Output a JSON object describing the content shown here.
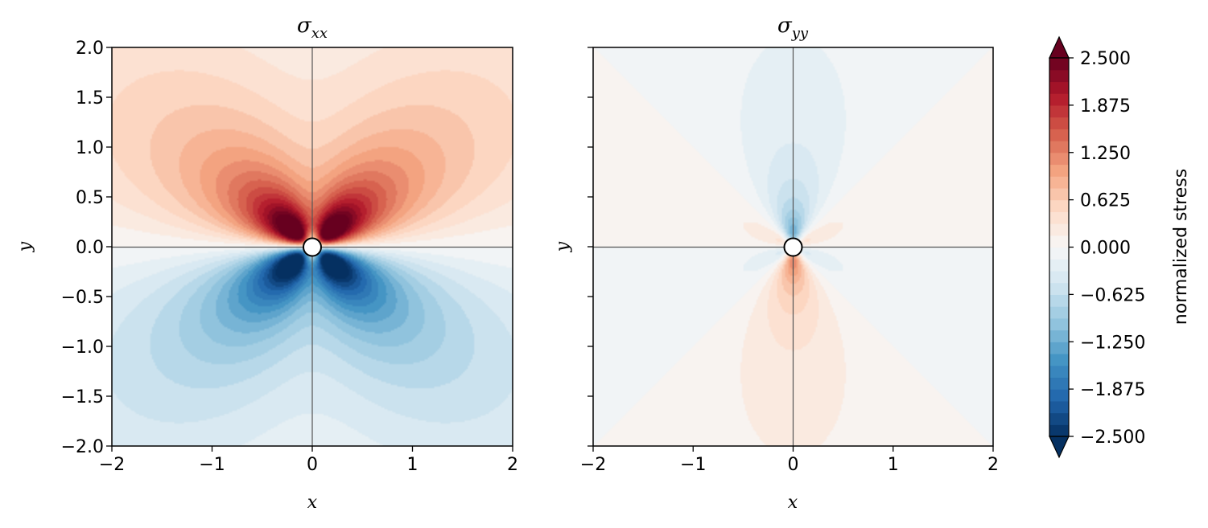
{
  "chart_data": [
    {
      "type": "heatmap",
      "title": "σ",
      "title_subscript": "xx",
      "xlabel": "x",
      "ylabel": "y",
      "xlim": [
        -2,
        2
      ],
      "ylim": [
        -2,
        2
      ],
      "x_ticks": [
        -2,
        -1,
        0,
        1,
        2
      ],
      "y_ticks": [
        -2.0,
        -1.5,
        -1.0,
        -0.5,
        0.0,
        0.5,
        1.0,
        1.5,
        2.0
      ],
      "x_tick_labels": [
        "−2",
        "−1",
        "0",
        "1",
        "2"
      ],
      "y_tick_labels": [
        "−2.0",
        "−1.5",
        "−1.0",
        "−0.5",
        "0.0",
        "0.5",
        "1.0",
        "1.5",
        "2.0"
      ],
      "field": "sigma_xx",
      "hole_radius": 0.08,
      "grid": false
    },
    {
      "type": "heatmap",
      "title": "σ",
      "title_subscript": "yy",
      "xlabel": "x",
      "ylabel": "y",
      "xlim": [
        -2,
        2
      ],
      "ylim": [
        -2,
        2
      ],
      "x_ticks": [
        -2,
        -1,
        0,
        1,
        2
      ],
      "y_ticks": [
        -2.0,
        -1.5,
        -1.0,
        -0.5,
        0.0,
        0.5,
        1.0,
        1.5,
        2.0
      ],
      "x_tick_labels": [
        "−2",
        "−1",
        "0",
        "1",
        "2"
      ],
      "y_tick_labels": [],
      "field": "sigma_yy",
      "hole_radius": 0.08,
      "grid": false
    }
  ],
  "colorbar": {
    "label": "normalized stress",
    "min": -2.5,
    "max": 2.5,
    "levels": 33,
    "extend": "both",
    "colormap": "RdBu_r",
    "ticks": [
      2.5,
      1.875,
      1.25,
      0.625,
      0.0,
      -0.625,
      -1.25,
      -1.875,
      -2.5
    ],
    "tick_labels": [
      "2.500",
      "1.875",
      "1.250",
      "0.625",
      "0.000",
      "−0.625",
      "−1.250",
      "−1.875",
      "−2.500"
    ]
  },
  "colors": {
    "rdbu": [
      "#053061",
      "#2166ac",
      "#4393c3",
      "#92c5de",
      "#d1e5f0",
      "#f7f7f7",
      "#fddbc7",
      "#f4a582",
      "#d6604d",
      "#b2182b",
      "#67001f"
    ],
    "crosshair": "#555555"
  }
}
